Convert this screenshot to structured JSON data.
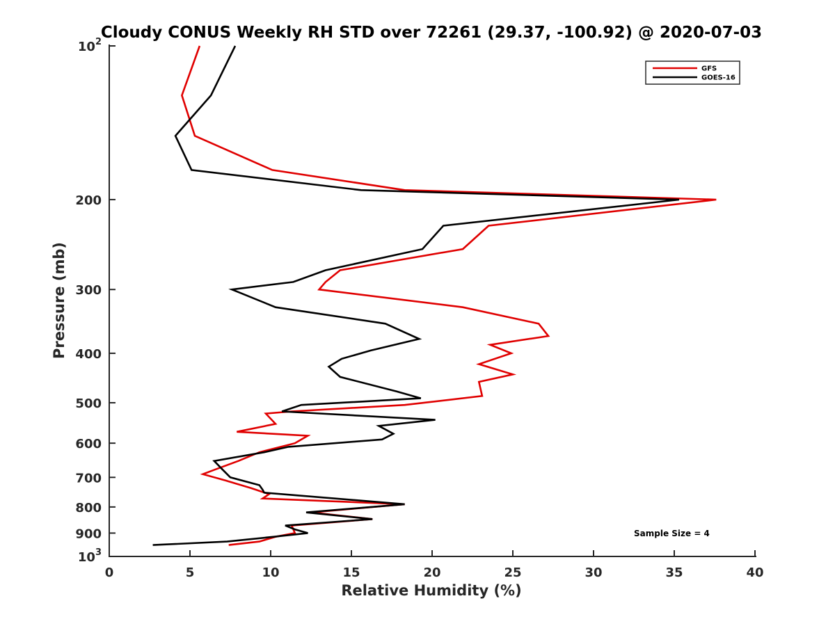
{
  "chart_data": {
    "type": "line",
    "title": "Cloudy CONUS Weekly RH STD over 72261 (29.37, -100.92) @ 2020-07-03",
    "xlabel": "Relative Humidity (%)",
    "ylabel": "Pressure (mb)",
    "xlim": [
      0,
      40
    ],
    "ylim": [
      100,
      1000
    ],
    "y_scale": "log",
    "y_reversed": true,
    "x_ticks": [
      0,
      5,
      10,
      15,
      20,
      25,
      30,
      35,
      40
    ],
    "y_ticks": [
      {
        "value": 100,
        "base": "10",
        "exp": "2"
      },
      {
        "value": 200,
        "label": "200"
      },
      {
        "value": 300,
        "label": "300"
      },
      {
        "value": 400,
        "label": "400"
      },
      {
        "value": 500,
        "label": "500"
      },
      {
        "value": 600,
        "label": "600"
      },
      {
        "value": 700,
        "label": "700"
      },
      {
        "value": 800,
        "label": "800"
      },
      {
        "value": 900,
        "label": "900"
      },
      {
        "value": 1000,
        "base": "10",
        "exp": "3"
      }
    ],
    "grid": false,
    "legend_position": "top-right",
    "annotation": "Sample Size = 4",
    "series": [
      {
        "name": "GFS",
        "color": "#e00000",
        "points": [
          [
            5.6,
            100
          ],
          [
            4.5,
            125
          ],
          [
            5.3,
            150
          ],
          [
            10.1,
            175
          ],
          [
            18.3,
            191.6
          ],
          [
            37.6,
            200
          ],
          [
            23.5,
            225
          ],
          [
            21.9,
            250
          ],
          [
            14.3,
            275
          ],
          [
            13.4,
            290
          ],
          [
            13.0,
            300
          ],
          [
            21.9,
            325
          ],
          [
            26.6,
            350
          ],
          [
            27.2,
            370
          ],
          [
            23.6,
            385
          ],
          [
            24.9,
            400
          ],
          [
            22.9,
            420
          ],
          [
            25.0,
            440
          ],
          [
            22.9,
            455
          ],
          [
            23.1,
            485
          ],
          [
            18.3,
            505
          ],
          [
            11.3,
            520
          ],
          [
            9.7,
            525
          ],
          [
            10.3,
            550
          ],
          [
            7.9,
            570
          ],
          [
            12.3,
            580
          ],
          [
            11.5,
            600
          ],
          [
            9.3,
            625
          ],
          [
            8.0,
            650
          ],
          [
            6.6,
            675
          ],
          [
            5.8,
            690
          ],
          [
            7.2,
            710
          ],
          [
            8.8,
            735
          ],
          [
            9.9,
            755
          ],
          [
            9.5,
            770
          ],
          [
            18.3,
            790
          ],
          [
            12.5,
            820
          ],
          [
            16.3,
            845
          ],
          [
            11.3,
            870
          ],
          [
            11.5,
            900
          ],
          [
            10.3,
            915
          ],
          [
            9.3,
            935
          ],
          [
            7.4,
            950
          ]
        ]
      },
      {
        "name": "GOES-16",
        "color": "#000000",
        "points": [
          [
            7.8,
            100
          ],
          [
            6.3,
            125
          ],
          [
            4.1,
            150
          ],
          [
            5.1,
            175
          ],
          [
            15.6,
            191.6
          ],
          [
            35.3,
            200
          ],
          [
            20.7,
            225
          ],
          [
            19.4,
            250
          ],
          [
            13.4,
            275
          ],
          [
            11.4,
            290
          ],
          [
            7.6,
            300
          ],
          [
            10.3,
            325
          ],
          [
            17.1,
            350
          ],
          [
            19.2,
            375
          ],
          [
            16.2,
            395
          ],
          [
            14.4,
            410
          ],
          [
            13.6,
            425
          ],
          [
            14.3,
            445
          ],
          [
            17.8,
            475
          ],
          [
            19.3,
            490
          ],
          [
            11.9,
            505
          ],
          [
            10.7,
            520
          ],
          [
            20.2,
            540
          ],
          [
            16.7,
            555
          ],
          [
            17.6,
            575
          ],
          [
            16.9,
            590
          ],
          [
            11.1,
            610
          ],
          [
            9.6,
            625
          ],
          [
            6.5,
            650
          ],
          [
            7.0,
            675
          ],
          [
            7.5,
            700
          ],
          [
            9.3,
            725
          ],
          [
            9.5,
            740
          ],
          [
            9.6,
            750
          ],
          [
            18.3,
            790
          ],
          [
            12.2,
            820
          ],
          [
            16.3,
            845
          ],
          [
            10.9,
            870
          ],
          [
            11.5,
            885
          ],
          [
            12.3,
            900
          ],
          [
            10.2,
            915
          ],
          [
            7.3,
            935
          ],
          [
            2.7,
            950
          ]
        ]
      }
    ]
  }
}
